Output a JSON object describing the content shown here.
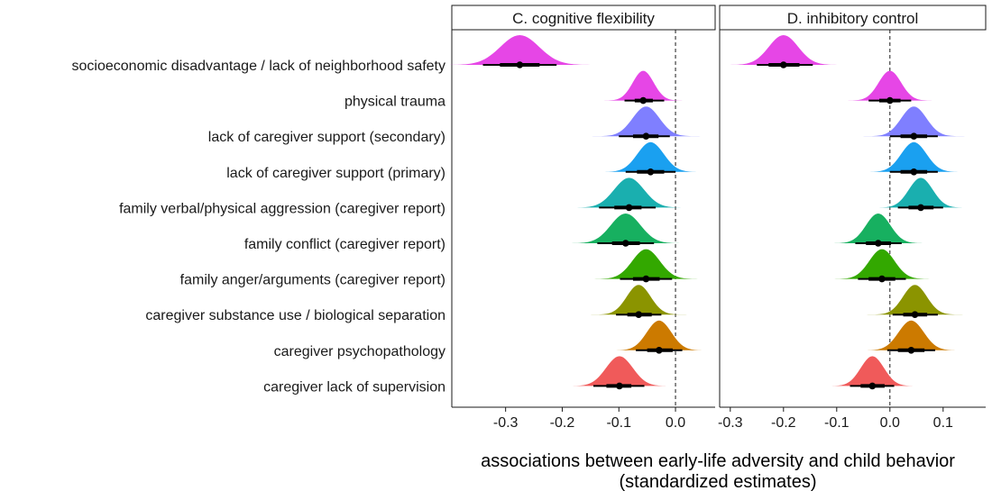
{
  "chart_data": {
    "type": "ridgeline",
    "xlabel": "associations between early-life adversity and child behavior",
    "xlabel_line2": "(standardized estimates)",
    "reference_line": 0.0,
    "categories": [
      "socioeconomic disadvantage / lack of neighborhood safety",
      "physical trauma",
      "lack of caregiver support (secondary)",
      "lack of caregiver support (primary)",
      "family verbal/physical aggression (caregiver report)",
      "family conflict (caregiver report)",
      "family anger/arguments (caregiver report)",
      "caregiver substance use / biological separation",
      "caregiver psychopathology",
      "caregiver lack of supervision"
    ],
    "colors": [
      "#e646e6",
      "#e646e6",
      "#7f7fff",
      "#1aa0f0",
      "#1aafaf",
      "#17b060",
      "#33a800",
      "#8b9400",
      "#cc7a00",
      "#f05a5a"
    ],
    "panels": [
      {
        "title": "C. cognitive flexibility",
        "xlim": [
          -0.395,
          0.07
        ],
        "ticks": [
          -0.3,
          -0.2,
          -0.1,
          0.0
        ],
        "tick_labels": [
          "-0.3",
          "-0.2",
          "-0.1",
          "0.0"
        ],
        "estimates": [
          -0.275,
          -0.057,
          -0.052,
          -0.044,
          -0.082,
          -0.088,
          -0.052,
          -0.065,
          -0.029,
          -0.099
        ],
        "ci_inner": [
          [
            -0.31,
            -0.24
          ],
          [
            -0.072,
            -0.04
          ],
          [
            -0.075,
            -0.03
          ],
          [
            -0.068,
            -0.02
          ],
          [
            -0.108,
            -0.06
          ],
          [
            -0.112,
            -0.063
          ],
          [
            -0.075,
            -0.028
          ],
          [
            -0.085,
            -0.042
          ],
          [
            -0.05,
            -0.005
          ],
          [
            -0.122,
            -0.078
          ]
        ],
        "ci_outer": [
          [
            -0.34,
            -0.21
          ],
          [
            -0.09,
            -0.02
          ],
          [
            -0.1,
            -0.01
          ],
          [
            -0.088,
            0.0
          ],
          [
            -0.135,
            -0.035
          ],
          [
            -0.138,
            -0.038
          ],
          [
            -0.098,
            -0.006
          ],
          [
            -0.105,
            -0.025
          ],
          [
            -0.07,
            0.012
          ],
          [
            -0.145,
            -0.055
          ]
        ]
      },
      {
        "title": "D. inhibitory control",
        "xlim": [
          -0.32,
          0.18
        ],
        "ticks": [
          -0.3,
          -0.2,
          -0.1,
          0.0,
          0.1
        ],
        "tick_labels": [
          "-0.3",
          "-0.2",
          "-0.1",
          "0.0",
          "0.1"
        ],
        "estimates": [
          -0.2,
          0.0,
          0.045,
          0.045,
          0.058,
          -0.022,
          -0.015,
          0.047,
          0.04,
          -0.033
        ],
        "ci_inner": [
          [
            -0.228,
            -0.17
          ],
          [
            -0.02,
            0.02
          ],
          [
            0.02,
            0.07
          ],
          [
            0.02,
            0.07
          ],
          [
            0.035,
            0.082
          ],
          [
            -0.045,
            0.002
          ],
          [
            -0.04,
            0.01
          ],
          [
            0.025,
            0.07
          ],
          [
            0.015,
            0.065
          ],
          [
            -0.055,
            -0.01
          ]
        ],
        "ci_outer": [
          [
            -0.25,
            -0.145
          ],
          [
            -0.04,
            0.04
          ],
          [
            0.0,
            0.09
          ],
          [
            0.0,
            0.09
          ],
          [
            0.015,
            0.1
          ],
          [
            -0.065,
            0.022
          ],
          [
            -0.06,
            0.03
          ],
          [
            0.005,
            0.09
          ],
          [
            -0.005,
            0.085
          ],
          [
            -0.075,
            0.008
          ]
        ]
      }
    ]
  }
}
